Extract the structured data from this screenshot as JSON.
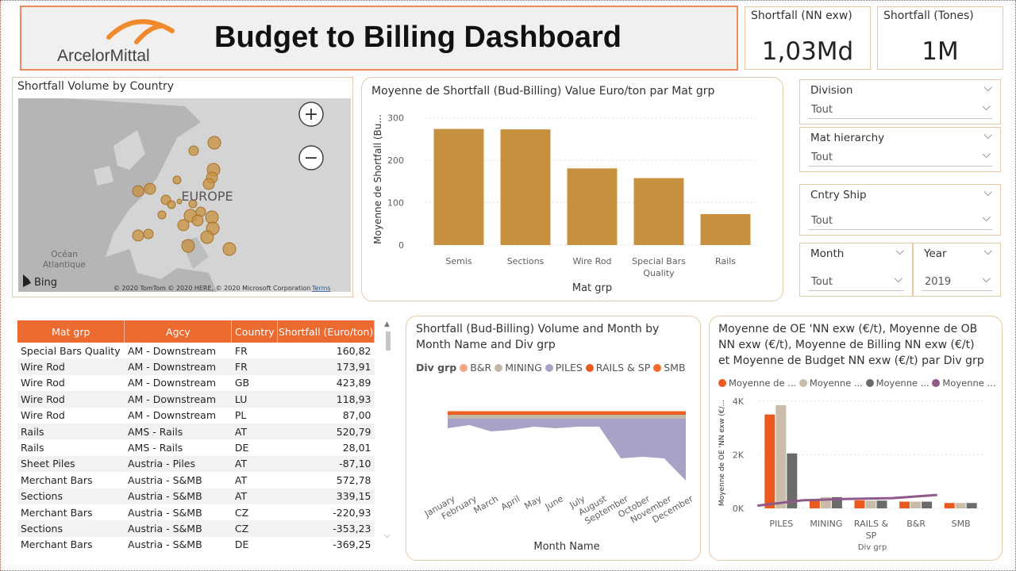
{
  "header": {
    "logo_text": "ArcelorMittal",
    "title": "Budget to Billing Dashboard"
  },
  "kpis": [
    {
      "label": "Shortfall (NN exw)",
      "value": "1,03Md"
    },
    {
      "label": "Shortfall (Tones)",
      "value": "1M"
    }
  ],
  "map": {
    "title": "Shortfall Volume by Country",
    "region_label": "EUROPE",
    "ocean_label_1": "Océan",
    "ocean_label_2": "Atlantique",
    "provider": "Bing",
    "attribution": "© 2020 TomTom © 2020 HERE, © 2020 Microsoft Corporation",
    "terms": "Terms",
    "zoom_in": "+",
    "zoom_out": "−"
  },
  "slicers": {
    "division": {
      "label": "Division",
      "value": "Tout"
    },
    "mat_hierarchy": {
      "label": "Mat hierarchy",
      "value": "Tout"
    },
    "cntry_ship": {
      "label": "Cntry Ship",
      "value": "Tout"
    },
    "month": {
      "label": "Month",
      "value": "Tout"
    },
    "year": {
      "label": "Year",
      "value": "2019"
    }
  },
  "chart_data": [
    {
      "type": "bar",
      "title": "Moyenne de Shortfall (Bud-Billing) Value Euro/ton par Mat grp",
      "xlabel": "Mat grp",
      "ylabel": "Moyenne de Shortfall (Bu...",
      "categories": [
        "Semis",
        "Sections",
        "Wire Rod",
        "Special Bars Quality",
        "Rails"
      ],
      "values": [
        274,
        273,
        181,
        158,
        73
      ],
      "yticks": [
        "0",
        "100",
        "200",
        "300"
      ],
      "ylim": [
        0,
        320
      ],
      "color": "#c8913f"
    },
    {
      "type": "area",
      "title_line1": "Shortfall (Bud-Billing) Volume and Month by",
      "title_line2": "Month Name and Div grp",
      "legend_title": "Div grp",
      "xlabel": "Month Name",
      "categories": [
        "January",
        "February",
        "March",
        "April",
        "May",
        "June",
        "July",
        "August",
        "September",
        "October",
        "November",
        "December"
      ],
      "series": [
        {
          "name": "B&R",
          "color": "#f4a582"
        },
        {
          "name": "MINING",
          "color": "#c2b8a8"
        },
        {
          "name": "PILES",
          "color": "#a9a2c6"
        },
        {
          "name": "RAILS & SP",
          "color": "#ea5a1e"
        },
        {
          "name": "SMB",
          "color": "#f06a30"
        }
      ]
    },
    {
      "type": "bar",
      "title_line1": "Moyenne de OE 'NN exw (€/t), Moyenne de OB",
      "title_line2": "NN exw (€/t), Moyenne de Billing NN exw (€/t)",
      "title_line3": "et Moyenne de Budget NN exw (€/t) par Div grp",
      "xlabel": "Div grp",
      "ylabel": "Moyenne de OE 'NN exw (€/...",
      "categories": [
        "PILES",
        "MINING",
        "RAILS & SP",
        "B&R",
        "SMB"
      ],
      "yticks": [
        "0K",
        "2K",
        "4K"
      ],
      "ylim": [
        0,
        4200
      ],
      "series": [
        {
          "name": "Moyenne de ...",
          "color": "#ea5a1e",
          "values": [
            3500,
            330,
            300,
            250,
            200
          ]
        },
        {
          "name": "Moyenne ...",
          "color": "#c9bca8",
          "values": [
            3850,
            420,
            290,
            250,
            200
          ]
        },
        {
          "name": "Moyenne ...",
          "color": "#6b6b6b",
          "values": [
            2050,
            420,
            290,
            250,
            200
          ]
        },
        {
          "name": "Moyenne ...",
          "color": "#8e5a8a",
          "type": "line",
          "values": [
            100,
            300,
            350,
            380,
            500
          ]
        }
      ]
    }
  ],
  "table": {
    "headers": [
      "Mat grp",
      "Agcy",
      "Country",
      "Shortfall (Euro/ton)"
    ],
    "rows": [
      [
        "Special Bars Quality",
        "AM - Downstream",
        "FR",
        "160,82"
      ],
      [
        "Wire Rod",
        "AM - Downstream",
        "FR",
        "173,91"
      ],
      [
        "Wire Rod",
        "AM - Downstream",
        "GB",
        "423,89"
      ],
      [
        "Wire Rod",
        "AM - Downstream",
        "LU",
        "118,93"
      ],
      [
        "Wire Rod",
        "AM - Downstream",
        "PL",
        "87,00"
      ],
      [
        "Rails",
        "AMS - Rails",
        "AT",
        "520,79"
      ],
      [
        "Rails",
        "AMS - Rails",
        "DE",
        "28,01"
      ],
      [
        "Sheet Piles",
        "Austria - Piles",
        "AT",
        "-87,10"
      ],
      [
        "Merchant Bars",
        "Austria - S&MB",
        "AT",
        "572,78"
      ],
      [
        "Sections",
        "Austria - S&MB",
        "AT",
        "339,15"
      ],
      [
        "Merchant Bars",
        "Austria - S&MB",
        "CZ",
        "-220,93"
      ],
      [
        "Sections",
        "Austria - S&MB",
        "CZ",
        "-353,23"
      ],
      [
        "Merchant Bars",
        "Austria - S&MB",
        "DE",
        "-369,25"
      ]
    ]
  }
}
